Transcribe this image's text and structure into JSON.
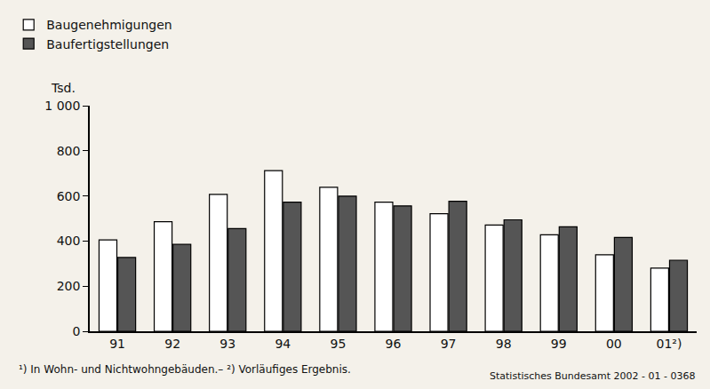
{
  "chart_data": {
    "type": "bar",
    "ylabel": "Tsd.",
    "categories": [
      "91",
      "92",
      "93",
      "94",
      "95",
      "96",
      "97",
      "98",
      "99",
      "00",
      "01²)"
    ],
    "series": [
      {
        "name": "Baugenehmigungen",
        "color": "#ffffff",
        "values": [
          405,
          486,
          607,
          712,
          638,
          572,
          521,
          471,
          428,
          339,
          280
        ]
      },
      {
        "name": "Baufertigstellungen",
        "color": "#555555",
        "values": [
          327,
          385,
          455,
          572,
          599,
          556,
          576,
          494,
          463,
          416,
          315
        ]
      }
    ],
    "ylim": [
      0,
      1000
    ],
    "yticks": [
      0,
      200,
      400,
      600,
      800,
      {
        "value": 1000,
        "label": "1 000"
      }
    ],
    "grid": false,
    "legend": "top left",
    "footnote": "¹) In Wohn- und Nichtwohngebäuden.– ²) Vorläufiges Ergebnis.",
    "source": "Statistisches Bundesamt 2002 - 01 - 0368"
  }
}
